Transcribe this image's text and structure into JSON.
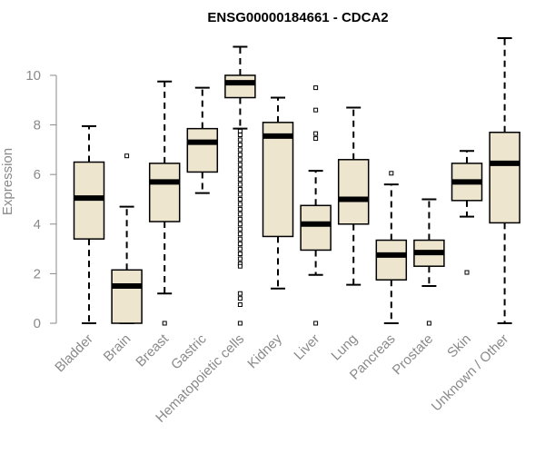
{
  "chart_data": {
    "type": "boxplot",
    "title": "ENSG00000184661 - CDCA2",
    "xlabel": "",
    "ylabel": "Expression",
    "ylim": [
      0,
      11.5
    ],
    "yticks": [
      0,
      2,
      4,
      6,
      8,
      10
    ],
    "colors": {
      "box_fill": "#ede5cd",
      "stroke": "#000000",
      "axis": "#8a8a8a",
      "text": "#8a8a8a"
    },
    "categories": [
      "Bladder",
      "Brain",
      "Breast",
      "Gastric",
      "Hematopoietic cells",
      "Kidney",
      "Liver",
      "Lung",
      "Pancreas",
      "Prostate",
      "Skin",
      "Unknown / Other"
    ],
    "boxes": [
      {
        "label": "Bladder",
        "whisker_low": 0.0,
        "q1": 3.4,
        "median": 5.05,
        "q3": 6.5,
        "whisker_high": 7.95,
        "outliers": []
      },
      {
        "label": "Brain",
        "whisker_low": 0.0,
        "q1": 0.0,
        "median": 1.5,
        "q3": 2.15,
        "whisker_high": 4.7,
        "outliers": [
          6.75
        ]
      },
      {
        "label": "Breast",
        "whisker_low": 1.2,
        "q1": 4.1,
        "median": 5.7,
        "q3": 6.45,
        "whisker_high": 9.75,
        "outliers": [
          0.0
        ]
      },
      {
        "label": "Gastric",
        "whisker_low": 5.25,
        "q1": 6.1,
        "median": 7.3,
        "q3": 7.85,
        "whisker_high": 9.5,
        "outliers": []
      },
      {
        "label": "Hematopoietic cells",
        "whisker_low": 7.85,
        "q1": 9.1,
        "median": 9.7,
        "q3": 10.0,
        "whisker_high": 11.15,
        "outliers": [
          7.75,
          7.6,
          7.4,
          7.2,
          7.0,
          6.8,
          6.6,
          6.4,
          6.2,
          6.0,
          5.8,
          5.6,
          5.4,
          5.2,
          5.0,
          4.8,
          4.6,
          4.4,
          4.2,
          4.0,
          3.8,
          3.6,
          3.4,
          3.2,
          3.0,
          2.8,
          2.6,
          2.4,
          2.3,
          1.2,
          1.0,
          0.75,
          0.0
        ]
      },
      {
        "label": "Kidney",
        "whisker_low": 1.4,
        "q1": 3.5,
        "median": 7.55,
        "q3": 8.1,
        "whisker_high": 9.1,
        "outliers": []
      },
      {
        "label": "Liver",
        "whisker_low": 1.95,
        "q1": 2.95,
        "median": 4.0,
        "q3": 4.75,
        "whisker_high": 6.15,
        "outliers": [
          9.5,
          8.6,
          7.65,
          7.45,
          0.0
        ]
      },
      {
        "label": "Lung",
        "whisker_low": 1.55,
        "q1": 4.0,
        "median": 5.0,
        "q3": 6.6,
        "whisker_high": 8.7,
        "outliers": []
      },
      {
        "label": "Pancreas",
        "whisker_low": 0.0,
        "q1": 1.75,
        "median": 2.75,
        "q3": 3.35,
        "whisker_high": 5.6,
        "outliers": [
          6.05
        ]
      },
      {
        "label": "Prostate",
        "whisker_low": 1.5,
        "q1": 2.3,
        "median": 2.85,
        "q3": 3.35,
        "whisker_high": 5.0,
        "outliers": [
          0.0
        ]
      },
      {
        "label": "Skin",
        "whisker_low": 4.3,
        "q1": 4.95,
        "median": 5.7,
        "q3": 6.45,
        "whisker_high": 6.95,
        "outliers": [
          2.05
        ]
      },
      {
        "label": "Unknown / Other",
        "whisker_low": 0.0,
        "q1": 4.05,
        "median": 6.45,
        "q3": 7.7,
        "whisker_high": 11.5,
        "outliers": []
      }
    ]
  }
}
